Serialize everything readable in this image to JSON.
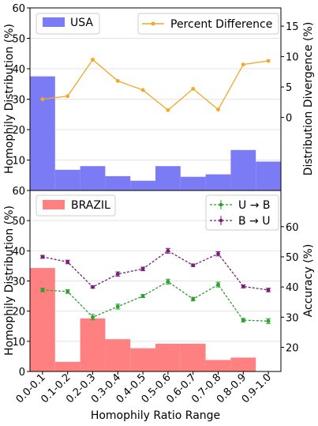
{
  "chart_data": [
    {
      "type": "bar",
      "panel": "top",
      "categories": [
        "0.0-0.1",
        "0.1-0.2",
        "0.2-0.3",
        "0.3-0.4",
        "0.4-0.5",
        "0.5-0.6",
        "0.6-0.7",
        "0.7-0.8",
        "0.8-0.9",
        "0.9-1.0"
      ],
      "ylabel": "Homophily Distribution (%)",
      "ylabel_right": "Distribution Divergence (%)",
      "ylim": [
        0,
        60
      ],
      "yticks": [
        "10",
        "20",
        "30",
        "40",
        "50",
        "60"
      ],
      "ylim_right": [
        -12,
        18
      ],
      "yticks_right": [
        "0",
        "5",
        "10",
        "15"
      ],
      "grid": true,
      "series": [
        {
          "name": "USA",
          "type": "bar",
          "color": "#7b7bf6",
          "values": [
            37.5,
            6.8,
            8.0,
            4.7,
            3.2,
            8.0,
            4.5,
            5.3,
            13.3,
            9.5
          ]
        },
        {
          "name": "Percent Difference",
          "type": "line",
          "color": "#f5a623",
          "axis": "right",
          "values": [
            3.0,
            3.5,
            9.5,
            6.0,
            4.5,
            1.2,
            4.7,
            1.3,
            8.7,
            9.3
          ]
        }
      ],
      "legend": [
        "top-left",
        "top-right"
      ]
    },
    {
      "type": "bar",
      "panel": "bottom",
      "categories": [
        "0.0-0.1",
        "0.1-0.2",
        "0.2-0.3",
        "0.3-0.4",
        "0.4-0.5",
        "0.5-0.6",
        "0.6-0.7",
        "0.7-0.8",
        "0.8-0.9",
        "0.9-1.0"
      ],
      "xlabel": "Homophily Ratio Range",
      "ylabel": "Homophily Distribution (%)",
      "ylabel_right": "Accuracy (%)",
      "ylim": [
        0,
        60
      ],
      "yticks": [
        "0",
        "10",
        "20",
        "30",
        "40",
        "50",
        "60"
      ],
      "ylim_right": [
        12,
        72
      ],
      "yticks_right": [
        "20",
        "30",
        "40",
        "50",
        "60"
      ],
      "grid": true,
      "series": [
        {
          "name": "BRAZIL",
          "type": "bar",
          "color": "#ff8080",
          "values": [
            34.3,
            3.2,
            17.6,
            10.7,
            7.7,
            9.2,
            9.2,
            3.8,
            4.6,
            0
          ]
        },
        {
          "name": "U → B",
          "type": "line",
          "color": "#2ca02c",
          "style": "dashed",
          "axis": "right",
          "values": [
            39.0,
            38.5,
            30.0,
            33.5,
            37.0,
            41.8,
            36.0,
            40.8,
            29.0,
            28.7
          ],
          "errors": [
            0.6,
            0.6,
            0.9,
            0.8,
            0.5,
            0.8,
            0.6,
            0.8,
            0.6,
            0.8
          ]
        },
        {
          "name": "B → U",
          "type": "line",
          "color": "#7b1e7a",
          "style": "dashed",
          "axis": "right",
          "values": [
            50.0,
            48.3,
            40.0,
            44.3,
            46.0,
            52.0,
            47.2,
            51.0,
            40.2,
            39.0
          ],
          "errors": [
            0.5,
            0.6,
            0.4,
            0.7,
            0.6,
            0.8,
            0.4,
            0.7,
            0.5,
            0.6
          ]
        }
      ],
      "legend": [
        "top-left",
        "top-right"
      ]
    }
  ]
}
